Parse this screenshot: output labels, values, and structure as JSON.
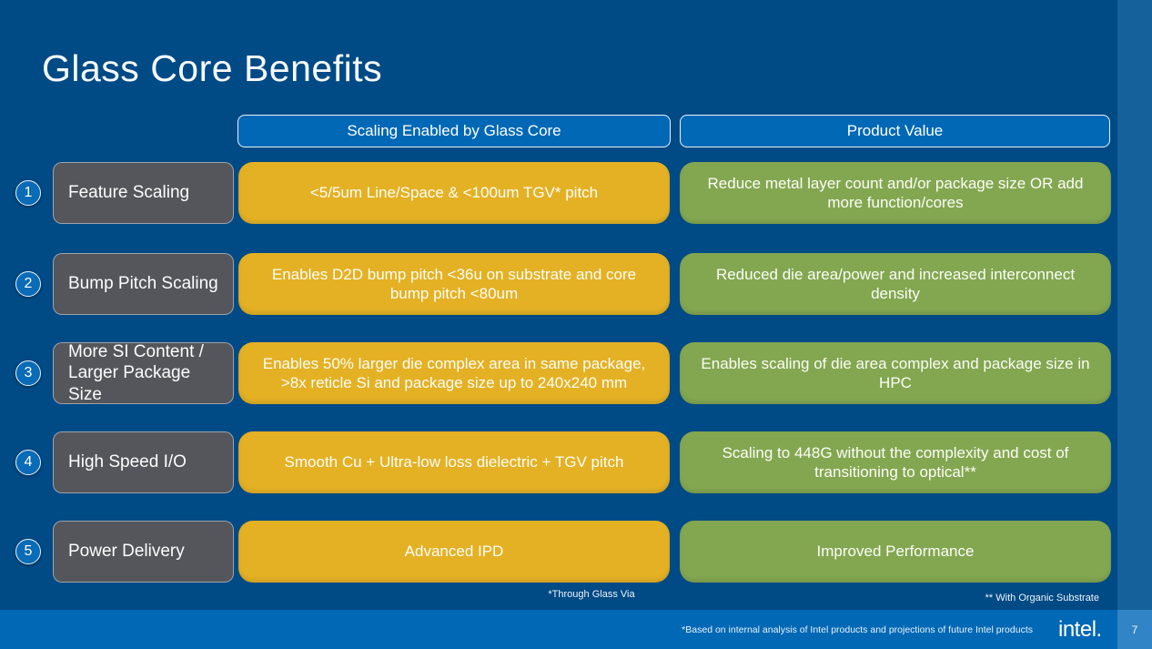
{
  "slide": {
    "title": "Glass Core Benefits",
    "columns": {
      "scaling": "Scaling Enabled by Glass Core",
      "value": "Product Value"
    },
    "rows": [
      {
        "num": "1",
        "label": "Feature Scaling",
        "scaling": "<5/5um Line/Space & <100um TGV* pitch",
        "value": "Reduce metal layer count and/or package size OR add more function/cores"
      },
      {
        "num": "2",
        "label": "Bump Pitch Scaling",
        "scaling": "Enables D2D bump pitch <36u on substrate and core bump pitch <80um",
        "value": "Reduced die area/power and increased interconnect density"
      },
      {
        "num": "3",
        "label": "More SI Content / Larger Package Size",
        "scaling": "Enables 50% larger die complex area in same package, >8x reticle Si and package size up to 240x240 mm",
        "value": "Enables scaling of die area complex and package size in HPC"
      },
      {
        "num": "4",
        "label": "High Speed I/O",
        "scaling": "Smooth Cu + Ultra-low loss dielectric + TGV pitch",
        "value": "Scaling to 448G without the complexity and cost of transitioning to optical**"
      },
      {
        "num": "5",
        "label": "Power Delivery",
        "scaling": "Advanced IPD",
        "value": "Improved Performance"
      }
    ],
    "footnotes": {
      "tgv": "*Through Glass Via",
      "organic": "** With Organic Substrate"
    },
    "footer": {
      "disclaimer": "*Based on internal analysis of Intel products and projections of future Intel products",
      "logo": "intel.",
      "page": "7"
    },
    "colors": {
      "background": "#004A85",
      "header_blue": "#0068B5",
      "accent_yellow": "#E4B125",
      "accent_green": "#83A751",
      "label_gray": "#54565B",
      "right_strip": "#14619C",
      "footer_bar": "#0068B5",
      "page_box": "#3184C5"
    }
  }
}
